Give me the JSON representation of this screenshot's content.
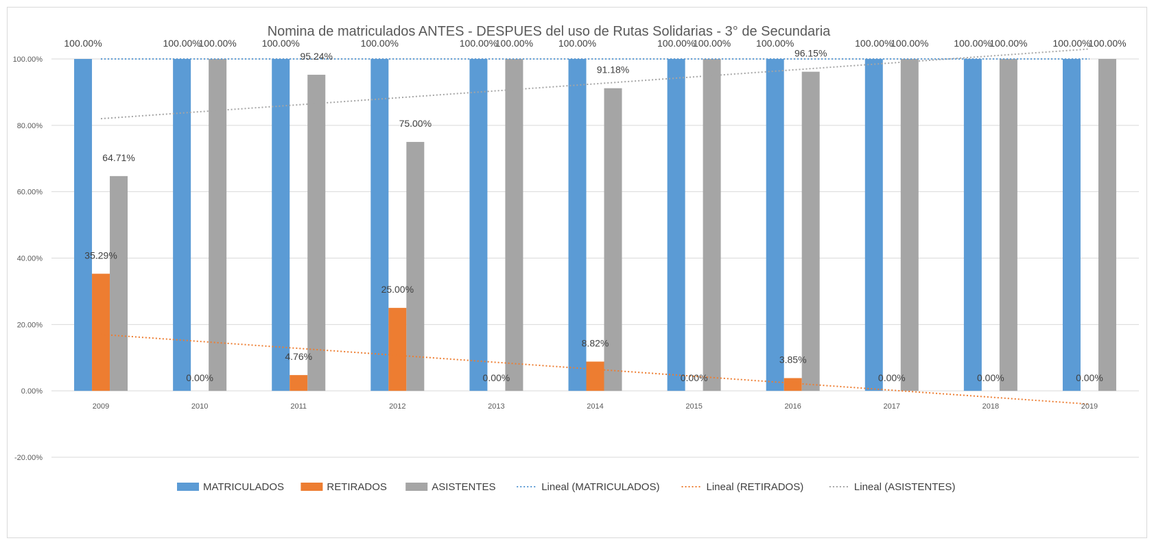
{
  "chart_data": {
    "type": "bar",
    "title": "Nomina de matriculados ANTES - DESPUES del uso de Rutas Solidarias - 3° de Secundaria",
    "categories": [
      "2009",
      "2010",
      "2011",
      "2012",
      "2013",
      "2014",
      "2015",
      "2016",
      "2017",
      "2018",
      "2019"
    ],
    "ylim": [
      -20,
      100
    ],
    "yticks": [
      -20,
      0,
      20,
      40,
      60,
      80,
      100
    ],
    "ytick_labels": [
      "-20.00%",
      "0.00%",
      "20.00%",
      "40.00%",
      "60.00%",
      "80.00%",
      "100.00%"
    ],
    "grid": true,
    "legend_position": "bottom",
    "series": [
      {
        "name": "MATRICULADOS",
        "color": "#5b9bd5",
        "values": [
          100,
          100,
          100,
          100,
          100,
          100,
          100,
          100,
          100,
          100,
          100
        ],
        "labels": [
          "100.00%",
          "100.00%",
          "100.00%",
          "100.00%",
          "100.00%",
          "100.00%",
          "100.00%",
          "100.00%",
          "100.00%",
          "100.00%",
          "100.00%"
        ]
      },
      {
        "name": "RETIRADOS",
        "color": "#ed7d31",
        "values": [
          35.29,
          0,
          4.76,
          25.0,
          0,
          8.82,
          0,
          3.85,
          0,
          0,
          0
        ],
        "labels": [
          "35.29%",
          "0.00%",
          "4.76%",
          "25.00%",
          "0.00%",
          "8.82%",
          "0.00%",
          "3.85%",
          "0.00%",
          "0.00%",
          "0.00%"
        ]
      },
      {
        "name": "ASISTENTES",
        "color": "#a5a5a5",
        "values": [
          64.71,
          100,
          95.24,
          75.0,
          100,
          91.18,
          100,
          96.15,
          100,
          100,
          100
        ],
        "labels": [
          "64.71%",
          "100.00%",
          "95.24%",
          "75.00%",
          "100.00%",
          "91.18%",
          "100.00%",
          "96.15%",
          "100.00%",
          "100.00%",
          "100.00%"
        ]
      }
    ],
    "trendlines": [
      {
        "name": "Lineal (MATRICULADOS)",
        "color": "#5b9bd5",
        "start": 100,
        "end": 100
      },
      {
        "name": "Lineal (RETIRADOS)",
        "color": "#ed7d31",
        "start": 17,
        "end": -4
      },
      {
        "name": "Lineal (ASISTENTES)",
        "color": "#a5a5a5",
        "start": 82,
        "end": 103
      }
    ]
  }
}
